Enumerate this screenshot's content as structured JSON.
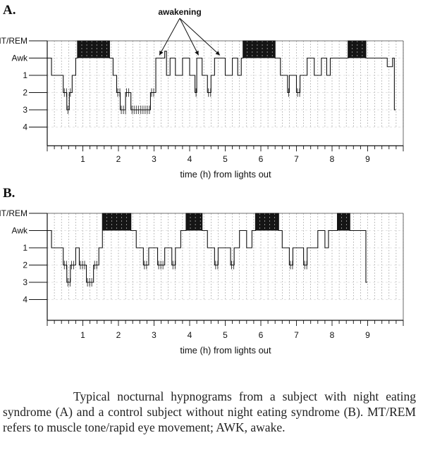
{
  "caption": "Typical nocturnal hypnograms from a subject with night eating syndrome (A) and a control subject without night eating syndrome (B). MT/REM refers to muscle tone/rapid eye movement; AWK, awake.",
  "annotation": "awakening",
  "chart_data": [
    {
      "type": "hypnogram",
      "panel": "A.",
      "xlabel": "time (h) from lights out",
      "stage_labels": [
        "MT/REM",
        "Awk",
        "1",
        "2",
        "3",
        "4"
      ],
      "x_ticks": [
        1,
        2,
        3,
        4,
        5,
        6,
        7,
        8,
        9
      ],
      "xlim": [
        0,
        10
      ],
      "annotation_arrows_at_h": [
        3.15,
        4.25,
        4.85
      ],
      "rem_periods_h": [
        [
          0.85,
          1.75
        ],
        [
          5.5,
          6.4
        ],
        [
          8.45,
          8.95
        ]
      ],
      "hypnogram": [
        [
          0.0,
          1
        ],
        [
          0.12,
          2
        ],
        [
          0.45,
          3
        ],
        [
          0.55,
          4
        ],
        [
          0.62,
          3
        ],
        [
          0.7,
          2
        ],
        [
          0.8,
          1
        ],
        [
          0.85,
          0
        ],
        [
          1.75,
          1
        ],
        [
          1.85,
          2
        ],
        [
          1.95,
          3
        ],
        [
          2.05,
          4
        ],
        [
          2.2,
          3
        ],
        [
          2.35,
          4
        ],
        [
          2.6,
          4
        ],
        [
          2.9,
          3
        ],
        [
          3.05,
          1
        ],
        [
          3.15,
          1
        ],
        [
          3.3,
          0.6
        ],
        [
          3.35,
          2
        ],
        [
          3.45,
          1
        ],
        [
          3.6,
          2
        ],
        [
          3.8,
          1
        ],
        [
          4.0,
          2
        ],
        [
          4.15,
          3
        ],
        [
          4.2,
          1
        ],
        [
          4.25,
          1
        ],
        [
          4.35,
          2
        ],
        [
          4.5,
          3
        ],
        [
          4.6,
          2
        ],
        [
          4.7,
          1
        ],
        [
          4.85,
          1
        ],
        [
          5.0,
          2
        ],
        [
          5.2,
          1
        ],
        [
          5.35,
          2
        ],
        [
          5.45,
          1
        ],
        [
          5.5,
          0
        ],
        [
          6.4,
          1
        ],
        [
          6.55,
          2
        ],
        [
          6.75,
          3
        ],
        [
          6.8,
          2
        ],
        [
          7.0,
          3
        ],
        [
          7.1,
          2
        ],
        [
          7.3,
          1
        ],
        [
          7.5,
          2
        ],
        [
          7.7,
          1
        ],
        [
          7.85,
          2
        ],
        [
          7.95,
          1
        ],
        [
          8.1,
          1
        ],
        [
          8.45,
          0
        ],
        [
          8.95,
          1
        ],
        [
          9.2,
          1
        ],
        [
          9.4,
          1
        ],
        [
          9.55,
          1.5
        ],
        [
          9.7,
          1
        ],
        [
          9.75,
          4
        ]
      ]
    },
    {
      "type": "hypnogram",
      "panel": "B.",
      "xlabel": "time (h) from lights out",
      "stage_labels": [
        "MT/REM",
        "Awk",
        "1",
        "2",
        "3",
        "4"
      ],
      "x_ticks": [
        1,
        2,
        3,
        4,
        5,
        6,
        7,
        8,
        9
      ],
      "xlim": [
        0,
        10
      ],
      "rem_periods_h": [
        [
          1.55,
          2.35
        ],
        [
          3.9,
          4.35
        ],
        [
          5.85,
          6.5
        ],
        [
          8.15,
          8.5
        ]
      ],
      "hypnogram": [
        [
          0.0,
          1
        ],
        [
          0.12,
          2
        ],
        [
          0.45,
          3
        ],
        [
          0.55,
          4
        ],
        [
          0.65,
          3
        ],
        [
          0.8,
          2
        ],
        [
          0.9,
          3
        ],
        [
          1.1,
          4
        ],
        [
          1.3,
          3
        ],
        [
          1.45,
          2
        ],
        [
          1.55,
          0
        ],
        [
          2.35,
          1
        ],
        [
          2.5,
          2
        ],
        [
          2.7,
          3
        ],
        [
          2.85,
          2
        ],
        [
          3.1,
          3
        ],
        [
          3.3,
          2
        ],
        [
          3.5,
          3
        ],
        [
          3.6,
          2
        ],
        [
          3.75,
          1
        ],
        [
          3.9,
          0
        ],
        [
          4.35,
          1
        ],
        [
          4.5,
          2
        ],
        [
          4.7,
          3
        ],
        [
          4.8,
          2
        ],
        [
          5.0,
          2
        ],
        [
          5.15,
          3
        ],
        [
          5.25,
          2
        ],
        [
          5.4,
          1
        ],
        [
          5.6,
          2
        ],
        [
          5.75,
          1
        ],
        [
          5.85,
          0
        ],
        [
          6.5,
          1
        ],
        [
          6.6,
          2
        ],
        [
          6.8,
          3
        ],
        [
          6.9,
          2
        ],
        [
          7.2,
          3
        ],
        [
          7.3,
          2
        ],
        [
          7.6,
          1
        ],
        [
          7.8,
          2
        ],
        [
          7.9,
          1
        ],
        [
          8.05,
          1
        ],
        [
          8.15,
          0
        ],
        [
          8.5,
          1
        ],
        [
          8.75,
          1
        ],
        [
          8.95,
          4
        ]
      ]
    }
  ]
}
